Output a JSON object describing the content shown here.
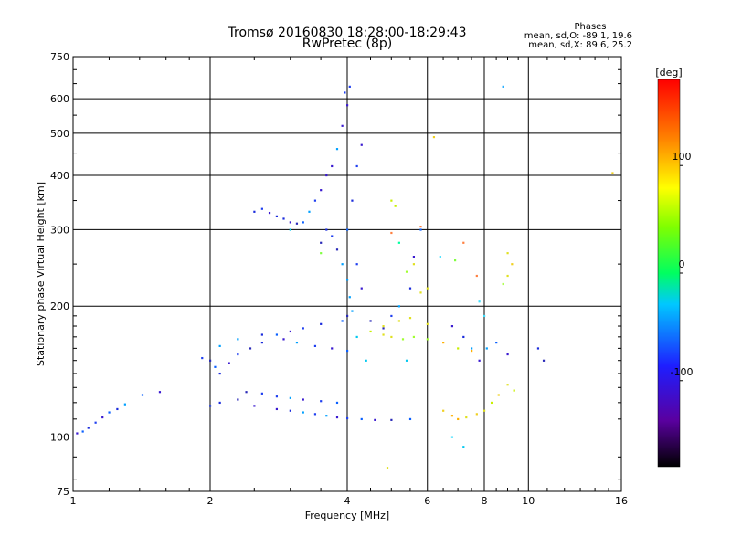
{
  "header": {
    "title_line1": "Tromsø 20160830 18:28:00-18:29:43",
    "title_line2": "RwPretec (8p)"
  },
  "phase_stats": {
    "heading": "Phases",
    "line_o": "mean, sd,O: -89.1, 19.6",
    "line_x": "mean, sd,X: 89.6, 25.2"
  },
  "colors": {
    "background": "#ffffff",
    "grid": "#000000",
    "o_mode_blue": "#1a2bdc",
    "x_mode_yellow": "#e0e020"
  },
  "chart_data": {
    "type": "scatter",
    "title": "Tromsø 20160830 18:28:00-18:29:43",
    "subtitle": "RwPretec (8p)",
    "xlabel": "Frequency [MHz]",
    "ylabel": "Stationary phase Virtual Height [km]",
    "xscale": "log",
    "yscale": "log",
    "xlim": [
      1,
      16
    ],
    "ylim": [
      75,
      750
    ],
    "x_ticks": [
      1,
      2,
      4,
      6,
      8,
      10,
      16
    ],
    "y_ticks": [
      75,
      100,
      200,
      300,
      400,
      500,
      600,
      750
    ],
    "grid": true,
    "colorbar": {
      "label": "[deg]",
      "range": [
        -180,
        180
      ],
      "ticks": [
        -100,
        0,
        100
      ],
      "colormap": "rainbow"
    },
    "series": [
      {
        "color_key": "blue",
        "points": [
          [
            1.02,
            102
          ],
          [
            1.05,
            103
          ],
          [
            1.08,
            105
          ],
          [
            1.12,
            108
          ],
          [
            1.16,
            111
          ],
          [
            1.2,
            114
          ],
          [
            1.25,
            116
          ],
          [
            1.3,
            119
          ],
          [
            1.42,
            125
          ],
          [
            1.55,
            127
          ],
          [
            1.92,
            152
          ],
          [
            2.0,
            150
          ],
          [
            2.05,
            145
          ],
          [
            2.1,
            140
          ],
          [
            2.2,
            148
          ],
          [
            2.3,
            155
          ],
          [
            2.45,
            160
          ],
          [
            2.6,
            165
          ],
          [
            2.8,
            172
          ],
          [
            3.0,
            175
          ],
          [
            3.2,
            178
          ],
          [
            3.5,
            182
          ],
          [
            2.1,
            162
          ],
          [
            2.3,
            168
          ],
          [
            2.6,
            172
          ],
          [
            2.9,
            168
          ],
          [
            3.1,
            165
          ],
          [
            3.4,
            162
          ],
          [
            3.7,
            160
          ],
          [
            4.0,
            158
          ],
          [
            2.4,
            127
          ],
          [
            2.6,
            126
          ],
          [
            2.8,
            124
          ],
          [
            3.0,
            123
          ],
          [
            3.2,
            122
          ],
          [
            3.5,
            121
          ],
          [
            3.8,
            120
          ],
          [
            2.0,
            118
          ],
          [
            2.1,
            120
          ],
          [
            2.3,
            122
          ],
          [
            2.5,
            118
          ],
          [
            2.8,
            116
          ],
          [
            3.0,
            115
          ],
          [
            3.2,
            114
          ],
          [
            3.4,
            113
          ],
          [
            3.6,
            112
          ],
          [
            3.8,
            111
          ],
          [
            4.0,
            110.5
          ],
          [
            4.3,
            110
          ],
          [
            4.6,
            109.5
          ],
          [
            5.0,
            109.5
          ],
          [
            5.5,
            110
          ],
          [
            2.5,
            330
          ],
          [
            2.6,
            335
          ],
          [
            2.7,
            328
          ],
          [
            2.8,
            322
          ],
          [
            2.9,
            318
          ],
          [
            3.0,
            312
          ],
          [
            3.1,
            310
          ],
          [
            3.2,
            312
          ],
          [
            3.3,
            330
          ],
          [
            3.4,
            350
          ],
          [
            3.5,
            370
          ],
          [
            3.6,
            400
          ],
          [
            3.7,
            420
          ],
          [
            3.8,
            460
          ],
          [
            3.9,
            520
          ],
          [
            4.0,
            580
          ],
          [
            4.05,
            640
          ],
          [
            3.95,
            620
          ],
          [
            3.5,
            280
          ],
          [
            3.6,
            300
          ],
          [
            3.7,
            290
          ],
          [
            3.8,
            270
          ],
          [
            3.9,
            250
          ],
          [
            4.0,
            230
          ],
          [
            4.05,
            210
          ],
          [
            4.1,
            195
          ],
          [
            4.0,
            190
          ],
          [
            3.9,
            185
          ],
          [
            4.0,
            300
          ],
          [
            4.1,
            350
          ],
          [
            4.2,
            420
          ],
          [
            4.3,
            470
          ],
          [
            4.2,
            250
          ],
          [
            4.3,
            220
          ],
          [
            4.5,
            185
          ],
          [
            4.8,
            178
          ],
          [
            5.0,
            190
          ],
          [
            5.2,
            200
          ],
          [
            5.5,
            220
          ],
          [
            5.6,
            260
          ],
          [
            5.8,
            300
          ],
          [
            6.8,
            180
          ],
          [
            7.2,
            170
          ],
          [
            7.5,
            160
          ],
          [
            7.8,
            150
          ],
          [
            8.1,
            160
          ],
          [
            8.5,
            165
          ],
          [
            9.0,
            155
          ],
          [
            10.5,
            160
          ],
          [
            10.8,
            150
          ],
          [
            8.8,
            640
          ]
        ]
      },
      {
        "color_key": "yellow_green",
        "points": [
          [
            4.5,
            175
          ],
          [
            4.8,
            172
          ],
          [
            5.0,
            170
          ],
          [
            5.3,
            168
          ],
          [
            5.6,
            170
          ],
          [
            6.0,
            168
          ],
          [
            6.5,
            165
          ],
          [
            7.0,
            160
          ],
          [
            7.5,
            158
          ],
          [
            4.8,
            180
          ],
          [
            5.2,
            185
          ],
          [
            5.5,
            188
          ],
          [
            6.0,
            182
          ],
          [
            6.5,
            115
          ],
          [
            6.8,
            112
          ],
          [
            7.0,
            110
          ],
          [
            7.3,
            111
          ],
          [
            7.7,
            113
          ],
          [
            8.0,
            115
          ],
          [
            8.3,
            120
          ],
          [
            8.6,
            125
          ],
          [
            9.0,
            132
          ],
          [
            9.3,
            128
          ],
          [
            5.0,
            350
          ],
          [
            5.1,
            340
          ],
          [
            5.4,
            240
          ],
          [
            5.6,
            250
          ],
          [
            5.8,
            215
          ],
          [
            6.0,
            220
          ],
          [
            8.8,
            225
          ],
          [
            9.0,
            235
          ],
          [
            9.2,
            250
          ],
          [
            9.0,
            265
          ],
          [
            15.3,
            405
          ],
          [
            6.2,
            490
          ],
          [
            4.9,
            85
          ]
        ]
      },
      {
        "color_key": "cyan_mixed",
        "points": [
          [
            5.0,
            295
          ],
          [
            5.2,
            280
          ],
          [
            5.8,
            305
          ],
          [
            6.4,
            260
          ],
          [
            6.9,
            255
          ],
          [
            7.2,
            280
          ],
          [
            7.7,
            235
          ],
          [
            7.8,
            205
          ],
          [
            8.0,
            190
          ],
          [
            3.0,
            300
          ],
          [
            3.5,
            265
          ],
          [
            4.2,
            170
          ],
          [
            4.4,
            150
          ],
          [
            5.4,
            150
          ],
          [
            6.8,
            100
          ],
          [
            7.2,
            95
          ]
        ]
      }
    ]
  }
}
